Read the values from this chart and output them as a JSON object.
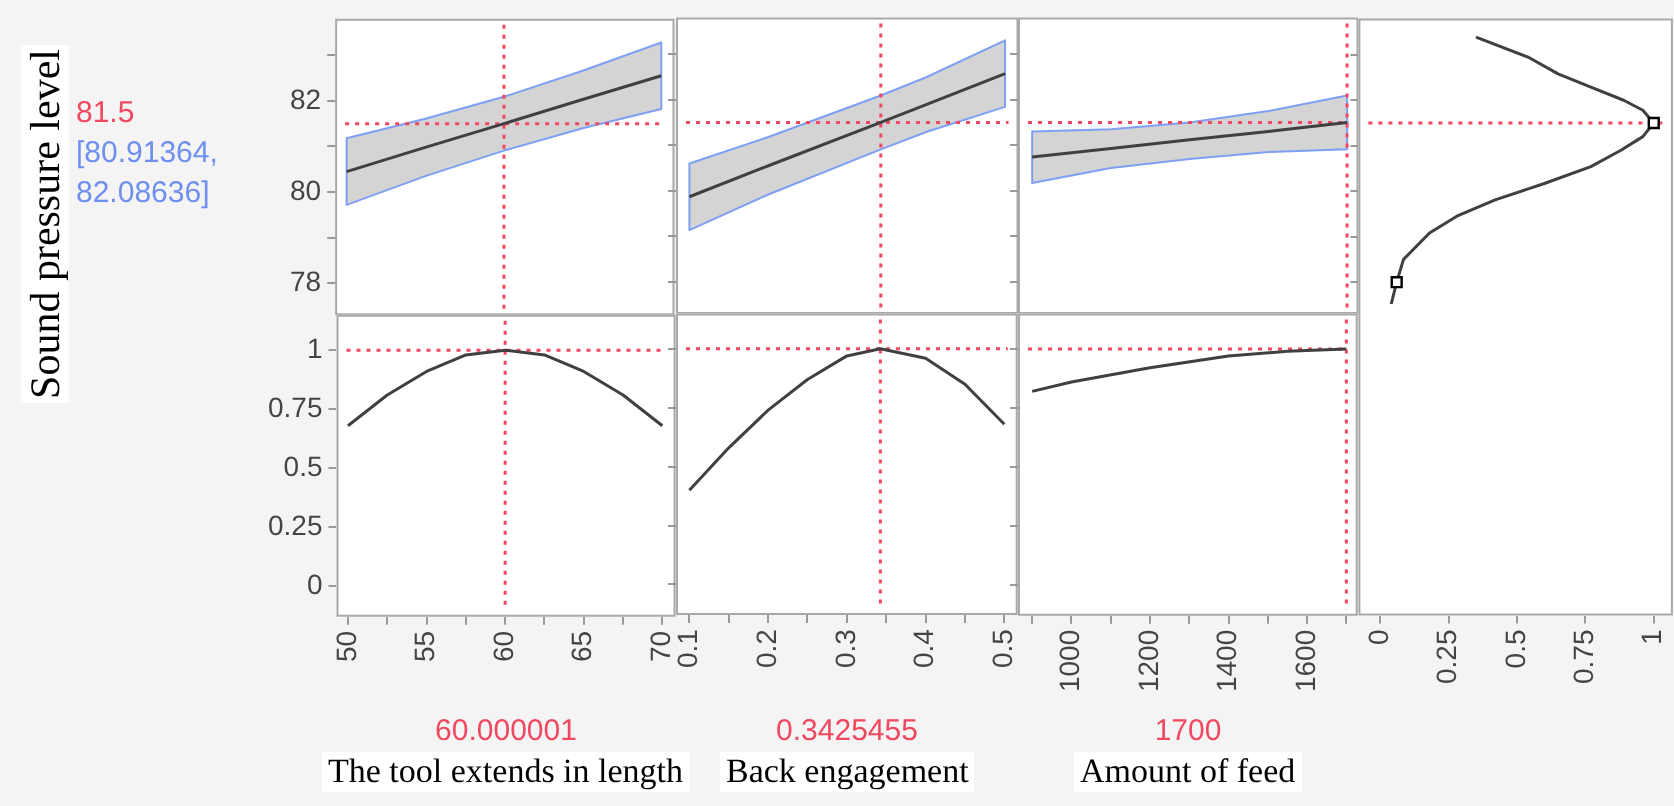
{
  "chart_data": [
    {
      "type": "line",
      "ylabel": "Sound pressure level",
      "annotations": [
        "[80.91364, 82.08636]"
      ],
      "xlim": [
        49.27,
        70.84
      ],
      "ylim": [
        77.3,
        83.8
      ],
      "xticks": [
        50,
        {
          "value": 52.5,
          "label": null
        },
        55,
        {
          "value": 57.5,
          "label": null
        },
        60,
        {
          "value": 62.5,
          "label": null
        },
        65,
        {
          "value": 67.5,
          "label": null
        },
        70
      ],
      "yticks": [
        78,
        {
          "value": 79,
          "label": null
        },
        80,
        {
          "value": 81,
          "label": null
        },
        82,
        {
          "value": 83,
          "label": null
        }
      ],
      "tick_labels": "y",
      "series": [
        {
          "color": "#404040",
          "x": [
            50,
            55,
            60,
            65,
            70
          ],
          "values": [
            80.45,
            80.98,
            81.5,
            82.03,
            82.55
          ],
          "lower": [
            79.72,
            80.35,
            80.91,
            81.4,
            81.82
          ],
          "upper": [
            81.18,
            81.61,
            82.09,
            82.66,
            83.28
          ]
        }
      ],
      "ref_lines": [
        {
          "axis": "x",
          "value": 60.000001,
          "color": "#f04860",
          "line_style": "dotted"
        },
        {
          "axis": "y",
          "value": 81.5,
          "label": "81.5",
          "color": "#f04860",
          "line_style": "dotted"
        }
      ]
    },
    {
      "type": "line",
      "xlim": [
        0.083,
        0.517
      ],
      "ylim": [
        77.3,
        83.8
      ],
      "xticks": [
        0.1,
        {
          "value": 0.15,
          "label": null
        },
        0.2,
        {
          "value": 0.25,
          "label": null
        },
        0.3,
        {
          "value": 0.35,
          "label": null
        },
        0.4,
        {
          "value": 0.45,
          "label": null
        },
        0.5
      ],
      "yticks": [
        78,
        {
          "value": 79,
          "label": null
        },
        80,
        {
          "value": 81,
          "label": null
        },
        82,
        {
          "value": 83,
          "label": null
        }
      ],
      "tick_labels": false,
      "series": [
        {
          "color": "#404040",
          "x": [
            0.1,
            0.2,
            0.3425455,
            0.4,
            0.5
          ],
          "values": [
            79.87,
            80.55,
            81.5,
            81.89,
            82.57
          ],
          "lower": [
            79.14,
            79.92,
            80.91,
            81.29,
            81.84
          ],
          "upper": [
            80.6,
            81.18,
            82.09,
            82.49,
            83.3
          ]
        }
      ],
      "ref_lines": [
        {
          "axis": "x",
          "value": 0.3425455,
          "color": "#f04860",
          "line_style": "dotted"
        },
        {
          "axis": "y",
          "value": 81.5,
          "color": "#f04860",
          "line_style": "dotted"
        }
      ]
    },
    {
      "type": "line",
      "xlim": [
        864,
        1729
      ],
      "ylim": [
        77.3,
        83.8
      ],
      "xticks": [
        {
          "value": 900,
          "label": null
        },
        1000,
        {
          "value": 1100,
          "label": null
        },
        1200,
        {
          "value": 1300,
          "label": null
        },
        1400,
        {
          "value": 1500,
          "label": null
        },
        1600,
        {
          "value": 1700,
          "label": null
        }
      ],
      "yticks": [
        78,
        {
          "value": 79,
          "label": null
        },
        80,
        {
          "value": 81,
          "label": null
        },
        82,
        {
          "value": 83,
          "label": null
        }
      ],
      "tick_labels": false,
      "series": [
        {
          "color": "#404040",
          "x": [
            900,
            1100,
            1300,
            1500,
            1700
          ],
          "values": [
            80.74,
            80.93,
            81.12,
            81.3,
            81.5
          ],
          "lower": [
            80.17,
            80.5,
            80.7,
            80.85,
            80.91
          ],
          "upper": [
            81.3,
            81.35,
            81.5,
            81.75,
            82.09
          ]
        }
      ],
      "ref_lines": [
        {
          "axis": "x",
          "value": 1700,
          "color": "#f04860",
          "line_style": "dotted"
        },
        {
          "axis": "y",
          "value": 81.5,
          "color": "#f04860",
          "line_style": "dotted"
        }
      ]
    },
    {
      "type": "line",
      "xlim": [
        -0.08,
        1.07
      ],
      "ylim": [
        70.67,
        83.8
      ],
      "xticks": [
        0,
        0.25,
        0.5,
        0.75,
        1
      ],
      "yticks": [
        78,
        {
          "value": 79,
          "label": null
        },
        80,
        {
          "value": 81,
          "label": null
        },
        82,
        {
          "value": 83,
          "label": null
        }
      ],
      "tick_labels": "x",
      "series": [
        {
          "color": "#404040",
          "marker": "none",
          "x": [
            0.35,
            0.54,
            0.65,
            0.77,
            0.89,
            0.96,
            1,
            0.96,
            0.88,
            0.77,
            0.6,
            0.42,
            0.28,
            0.18,
            0.085,
            0.06,
            0.04
          ],
          "values": [
            83.39,
            82.95,
            82.58,
            82.29,
            82.0,
            81.78,
            81.5,
            81.2,
            80.9,
            80.54,
            80.17,
            79.81,
            79.45,
            79.08,
            78.5,
            78.0,
            77.52
          ]
        },
        {
          "type": "scatter",
          "color": "#000000",
          "marker": "square",
          "x": [
            1,
            0.06
          ],
          "values": [
            81.5,
            78.0
          ]
        }
      ],
      "ref_lines": [
        {
          "axis": "y",
          "value": 81.5,
          "color": "#f04860",
          "line_style": "dotted"
        }
      ]
    },
    {
      "type": "line",
      "xlabel": "The tool extends in length",
      "xlim": [
        49.27,
        70.84
      ],
      "ylim": [
        -0.13,
        1.15
      ],
      "xticks": [
        50,
        {
          "value": 52.5,
          "label": null
        },
        55,
        {
          "value": 57.5,
          "label": null
        },
        60,
        {
          "value": 62.5,
          "label": null
        },
        65,
        {
          "value": 67.5,
          "label": null
        },
        70
      ],
      "yticks": [
        0,
        0.25,
        0.5,
        0.75,
        1
      ],
      "series": [
        {
          "color": "#404040",
          "x": [
            50,
            52.5,
            55,
            57.5,
            60,
            62.5,
            65,
            67.5,
            70
          ],
          "values": [
            0.68,
            0.81,
            0.91,
            0.98,
            1,
            0.98,
            0.91,
            0.81,
            0.68
          ]
        }
      ],
      "ref_lines": [
        {
          "axis": "x",
          "value": 60.000001,
          "label": "60.000001",
          "color": "#f04860",
          "line_style": "dotted"
        },
        {
          "axis": "y",
          "value": 1,
          "color": "#f04860",
          "line_style": "dotted"
        }
      ]
    },
    {
      "type": "line",
      "xlabel": "Back engagement",
      "xlim": [
        0.083,
        0.517
      ],
      "ylim": [
        -0.13,
        1.15
      ],
      "xticks": [
        0.1,
        {
          "value": 0.15,
          "label": null
        },
        0.2,
        {
          "value": 0.25,
          "label": null
        },
        0.3,
        {
          "value": 0.35,
          "label": null
        },
        0.4,
        {
          "value": 0.45,
          "label": null
        },
        0.5
      ],
      "yticks": [
        0,
        0.25,
        0.5,
        0.75,
        1
      ],
      "tick_labels": "x",
      "series": [
        {
          "color": "#404040",
          "x": [
            0.1,
            0.15,
            0.2,
            0.25,
            0.3,
            0.3425455,
            0.4,
            0.45,
            0.5
          ],
          "values": [
            0.4,
            0.58,
            0.74,
            0.87,
            0.97,
            1,
            0.96,
            0.85,
            0.68
          ]
        }
      ],
      "ref_lines": [
        {
          "axis": "x",
          "value": 0.3425455,
          "label": "0.3425455",
          "color": "#f04860",
          "line_style": "dotted"
        },
        {
          "axis": "y",
          "value": 1,
          "color": "#f04860",
          "line_style": "dotted"
        }
      ]
    },
    {
      "type": "line",
      "xlabel": "Amount of feed",
      "xlim": [
        864,
        1729
      ],
      "ylim": [
        -0.13,
        1.15
      ],
      "xticks": [
        {
          "value": 900,
          "label": null
        },
        1000,
        {
          "value": 1100,
          "label": null
        },
        1200,
        {
          "value": 1300,
          "label": null
        },
        1400,
        {
          "value": 1500,
          "label": null
        },
        1600,
        {
          "value": 1700,
          "label": null
        }
      ],
      "yticks": [
        0,
        0.25,
        0.5,
        0.75,
        1
      ],
      "tick_labels": "x",
      "series": [
        {
          "color": "#404040",
          "x": [
            900,
            1000,
            1200,
            1400,
            1550,
            1700
          ],
          "values": [
            0.82,
            0.86,
            0.92,
            0.97,
            0.99,
            1
          ]
        }
      ],
      "ref_lines": [
        {
          "axis": "x",
          "value": 1700,
          "label": "1700",
          "color": "#f04860",
          "line_style": "dotted"
        },
        {
          "axis": "y",
          "value": 1,
          "color": "#f04860",
          "line_style": "dotted"
        }
      ]
    }
  ]
}
